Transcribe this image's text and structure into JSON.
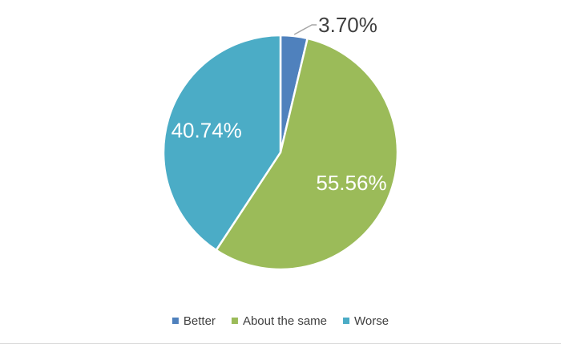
{
  "chart_data": {
    "type": "pie",
    "title": "",
    "categories": [
      "Better",
      "About the same",
      "Worse"
    ],
    "values": [
      3.7,
      55.56,
      40.74
    ],
    "labels": [
      "3.70%",
      "55.56%",
      "40.74%"
    ],
    "colors": [
      "#4f81bd",
      "#9bbb59",
      "#4bacc6"
    ],
    "start_angle_deg": 0,
    "direction": "clockwise",
    "legend": {
      "position": "bottom",
      "items": [
        "Better",
        "About the same",
        "Worse"
      ]
    },
    "label_colors": {
      "inside": "#ffffff",
      "outside": "#404040",
      "leader_line": "#a6a6a6"
    }
  }
}
